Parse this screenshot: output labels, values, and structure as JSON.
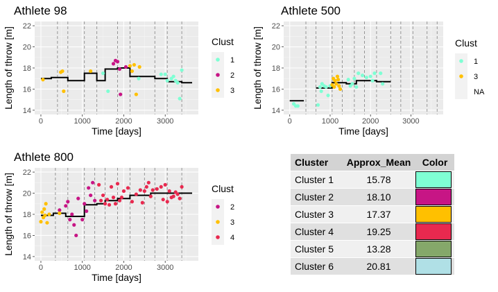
{
  "chart_data": [
    {
      "type": "scatter",
      "title": "Athlete  98",
      "xlabel": "Time [days]",
      "ylabel": "Length of throw [m]",
      "xlim": [
        -150,
        3800
      ],
      "ylim": [
        13.6,
        22.4
      ],
      "xticks": [
        0,
        1000,
        2000,
        3000
      ],
      "yticks": [
        14,
        16,
        18,
        20,
        22
      ],
      "vlines": [
        400,
        650,
        1050,
        1350,
        1850,
        2150,
        2750,
        3050,
        3400
      ],
      "legend": {
        "title": "Clust",
        "entries": [
          {
            "label": "1",
            "color": "#7FFFD4"
          },
          {
            "label": "2",
            "color": "#C71585"
          },
          {
            "label": "3",
            "color": "#FFC000"
          }
        ]
      },
      "step": [
        [
          0,
          17.0
        ],
        [
          250,
          17.0
        ],
        [
          250,
          17.1
        ],
        [
          650,
          17.1
        ],
        [
          650,
          16.8
        ],
        [
          1050,
          16.8
        ],
        [
          1050,
          17.5
        ],
        [
          1350,
          17.5
        ],
        [
          1350,
          16.8
        ],
        [
          1550,
          16.8
        ],
        [
          1550,
          17.9
        ],
        [
          1850,
          17.9
        ],
        [
          1850,
          18.0
        ],
        [
          2150,
          18.0
        ],
        [
          2150,
          17.2
        ],
        [
          2750,
          17.2
        ],
        [
          2750,
          17.0
        ],
        [
          3050,
          17.0
        ],
        [
          3050,
          16.7
        ],
        [
          3400,
          16.7
        ],
        [
          3400,
          16.6
        ],
        [
          3650,
          16.6
        ]
      ],
      "series": [
        {
          "name": "1",
          "color": "#7FFFD4",
          "points": [
            [
              1500,
              17.5
            ],
            [
              1620,
              15.8
            ],
            [
              2360,
              17.0
            ],
            [
              2900,
              17.4
            ],
            [
              3000,
              17.4
            ],
            [
              3050,
              16.8
            ],
            [
              3150,
              17.0
            ],
            [
              3200,
              17.2
            ],
            [
              3250,
              16.8
            ],
            [
              3300,
              16.6
            ],
            [
              3350,
              15.1
            ],
            [
              3400,
              17.8
            ]
          ]
        },
        {
          "name": "2",
          "color": "#C71585",
          "points": [
            [
              1750,
              18.4
            ],
            [
              1800,
              18.7
            ],
            [
              1850,
              18.6
            ],
            [
              1900,
              17.9
            ],
            [
              1920,
              15.5
            ],
            [
              2050,
              18.1
            ]
          ]
        },
        {
          "name": "3",
          "color": "#FFC000",
          "points": [
            [
              50,
              16.9
            ],
            [
              480,
              17.6
            ],
            [
              520,
              17.7
            ],
            [
              550,
              15.8
            ],
            [
              1200,
              17.7
            ],
            [
              2150,
              18.2
            ],
            [
              2200,
              17.7
            ],
            [
              2250,
              18.3
            ],
            [
              2300,
              15.5
            ],
            [
              2380,
              18.1
            ]
          ]
        }
      ]
    },
    {
      "type": "scatter",
      "title": "Athlete  500",
      "xlabel": "Time [days]",
      "ylabel": "Length of throw [m]",
      "xlim": [
        -150,
        3800
      ],
      "ylim": [
        13.6,
        22.4
      ],
      "xticks": [
        0,
        1000,
        2000,
        3000
      ],
      "yticks": [
        14,
        16,
        18,
        20,
        22
      ],
      "vlines": [
        400,
        650,
        1050,
        1300,
        1600,
        1850,
        2150,
        2500,
        2750,
        3050,
        3400,
        3650
      ],
      "legend": {
        "title": "Clust",
        "entries": [
          {
            "label": "1",
            "color": "#7FFFD4"
          },
          {
            "label": "3",
            "color": "#FFC000"
          },
          {
            "label": "NA",
            "color": ""
          }
        ]
      },
      "step": [
        [
          0,
          14.9
        ],
        [
          350,
          14.9
        ],
        [
          null,
          null
        ],
        [
          650,
          16.1
        ],
        [
          1050,
          16.1
        ],
        [
          1050,
          16.6
        ],
        [
          1400,
          16.6
        ],
        [
          1400,
          16.5
        ],
        [
          1650,
          16.5
        ],
        [
          1650,
          16.8
        ],
        [
          2150,
          16.8
        ],
        [
          2150,
          16.7
        ],
        [
          2500,
          16.7
        ]
      ],
      "series": [
        {
          "name": "1",
          "color": "#7FFFD4",
          "points": [
            [
              100,
              14.6
            ],
            [
              150,
              14.4
            ],
            [
              200,
              14.4
            ],
            [
              700,
              14.5
            ],
            [
              750,
              16.2
            ],
            [
              780,
              15.8
            ],
            [
              800,
              16.5
            ],
            [
              850,
              16.3
            ],
            [
              900,
              16.2
            ],
            [
              950,
              15.4
            ],
            [
              1000,
              16.3
            ],
            [
              1450,
              16.9
            ],
            [
              1500,
              16.3
            ],
            [
              1550,
              16.5
            ],
            [
              1600,
              17.0
            ],
            [
              1650,
              16.2
            ],
            [
              1700,
              17.5
            ],
            [
              1800,
              17.3
            ],
            [
              1900,
              17.1
            ],
            [
              2000,
              17.2
            ],
            [
              2050,
              16.8
            ],
            [
              2100,
              17.5
            ],
            [
              2250,
              17.5
            ],
            [
              2300,
              16.5
            ]
          ]
        },
        {
          "name": "3",
          "color": "#FFC000",
          "points": [
            [
              1050,
              16.4
            ],
            [
              1080,
              17.0
            ],
            [
              1100,
              16.2
            ],
            [
              1120,
              16.8
            ],
            [
              1150,
              16.5
            ],
            [
              1180,
              17.2
            ],
            [
              1200,
              16.9
            ],
            [
              1220,
              16.3
            ],
            [
              1250,
              16.0
            ]
          ]
        }
      ]
    },
    {
      "type": "scatter",
      "title": "Athlete  800",
      "xlabel": "Time [days]",
      "ylabel": "Length of throw [m]",
      "xlim": [
        -150,
        3800
      ],
      "ylim": [
        13.6,
        22.4
      ],
      "xticks": [
        0,
        1000,
        2000,
        3000
      ],
      "yticks": [
        14,
        16,
        18,
        20,
        22
      ],
      "vlines": [
        350,
        650,
        1050,
        1300,
        1550,
        1850,
        2150,
        2500,
        2750,
        3050,
        3400
      ],
      "legend": {
        "title": "Clust",
        "entries": [
          {
            "label": "2",
            "color": "#C71585"
          },
          {
            "label": "3",
            "color": "#FFC000"
          },
          {
            "label": "4",
            "color": "#E8294F"
          }
        ]
      },
      "step": [
        [
          0,
          17.9
        ],
        [
          300,
          17.9
        ],
        [
          300,
          18.1
        ],
        [
          600,
          18.1
        ],
        [
          600,
          17.8
        ],
        [
          1050,
          17.8
        ],
        [
          1050,
          18.9
        ],
        [
          1350,
          18.9
        ],
        [
          1350,
          19.0
        ],
        [
          1550,
          19.0
        ],
        [
          1550,
          19.3
        ],
        [
          1850,
          19.3
        ],
        [
          1850,
          19.5
        ],
        [
          2150,
          19.5
        ],
        [
          2150,
          19.8
        ],
        [
          2650,
          19.8
        ],
        [
          2650,
          20.0
        ],
        [
          3650,
          20.0
        ]
      ],
      "series": [
        {
          "name": "2",
          "color": "#C71585",
          "points": [
            [
              450,
              18.4
            ],
            [
              600,
              18.8
            ],
            [
              650,
              19.2
            ],
            [
              700,
              17.5
            ],
            [
              750,
              18.0
            ],
            [
              800,
              17.0
            ],
            [
              850,
              16.0
            ],
            [
              900,
              19.5
            ],
            [
              1000,
              17.5
            ],
            [
              1050,
              19.0
            ],
            [
              1100,
              18.3
            ],
            [
              1150,
              20.5
            ],
            [
              1200,
              19.8
            ],
            [
              1250,
              21.0
            ],
            [
              1300,
              19.3
            ]
          ]
        },
        {
          "name": "3",
          "color": "#FFC000",
          "points": [
            [
              0,
              17.3
            ],
            [
              30,
              18.2
            ],
            [
              60,
              17.7
            ],
            [
              80,
              18.5
            ],
            [
              100,
              17.9
            ],
            [
              120,
              19.0
            ],
            [
              150,
              17.2
            ],
            [
              200,
              18.0
            ],
            [
              450,
              18.1
            ]
          ]
        },
        {
          "name": "4",
          "color": "#E8294F",
          "points": [
            [
              1400,
              20.8
            ],
            [
              1450,
              19.3
            ],
            [
              1500,
              19.8
            ],
            [
              1550,
              19.0
            ],
            [
              1600,
              19.4
            ],
            [
              1650,
              18.9
            ],
            [
              1700,
              20.6
            ],
            [
              1750,
              19.6
            ],
            [
              1800,
              19.0
            ],
            [
              1850,
              20.9
            ],
            [
              1900,
              19.3
            ],
            [
              1950,
              19.6
            ],
            [
              2000,
              20.2
            ],
            [
              2100,
              20.5
            ],
            [
              2200,
              19.2
            ],
            [
              2300,
              19.9
            ],
            [
              2400,
              20.3
            ],
            [
              2450,
              19.1
            ],
            [
              2500,
              20.2
            ],
            [
              2550,
              20.6
            ],
            [
              2600,
              21.0
            ],
            [
              2650,
              19.7
            ],
            [
              2700,
              20.3
            ],
            [
              2800,
              20.4
            ],
            [
              2900,
              20.6
            ],
            [
              2950,
              19.4
            ],
            [
              3000,
              20.8
            ],
            [
              3050,
              19.2
            ],
            [
              3100,
              20.2
            ],
            [
              3150,
              19.6
            ],
            [
              3200,
              19.7
            ],
            [
              3250,
              20.1
            ],
            [
              3300,
              19.9
            ],
            [
              3350,
              19.5
            ],
            [
              3400,
              20.6
            ]
          ]
        }
      ]
    }
  ],
  "table": {
    "headers": [
      "Cluster",
      "Approx_Mean",
      "Color"
    ],
    "rows": [
      {
        "cluster": "Cluster 1",
        "mean": "15.78",
        "color": "#7FFFD4"
      },
      {
        "cluster": "Cluster 2",
        "mean": "18.10",
        "color": "#C71585"
      },
      {
        "cluster": "Cluster 3",
        "mean": "17.37",
        "color": "#FFC000"
      },
      {
        "cluster": "Cluster 4",
        "mean": "19.25",
        "color": "#E8294F"
      },
      {
        "cluster": "Cluster 5",
        "mean": "13.28",
        "color": "#85A86A"
      },
      {
        "cluster": "Cluster 6",
        "mean": "20.81",
        "color": "#B0E0E6"
      }
    ]
  }
}
